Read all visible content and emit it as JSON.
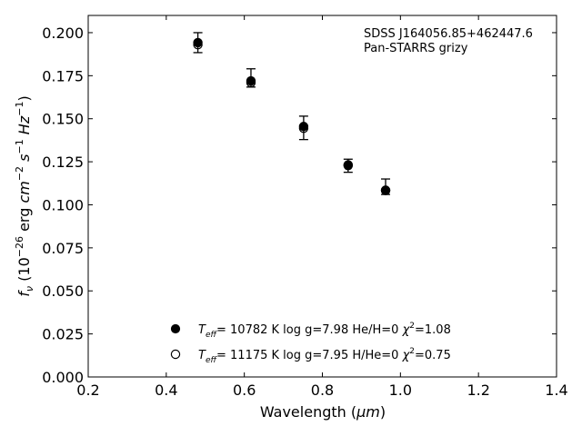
{
  "chart_data": {
    "type": "scatter",
    "xlabel_main": "Wavelength (",
    "xlabel_unit": "μm",
    "xlabel_close": ")",
    "ylabel": {
      "f": "f",
      "nu": "ν",
      "pre": " (10",
      "exp1": "−26",
      "erg": " erg ",
      "cm": "cm",
      "exp2": "−2",
      "s": "s",
      "exp3": "−1",
      "hz": "Hz",
      "exp4": "−1",
      "close": ")"
    },
    "xlim": [
      0.2,
      1.4
    ],
    "ylim": [
      0.0,
      0.21
    ],
    "xticks": [
      0.2,
      0.4,
      0.6,
      0.8,
      1.0,
      1.2,
      1.4
    ],
    "xtick_labels": [
      "0.2",
      "0.4",
      "0.6",
      "0.8",
      "1.0",
      "1.2",
      "1.4"
    ],
    "yticks": [
      0.0,
      0.025,
      0.05,
      0.075,
      0.1,
      0.125,
      0.15,
      0.175,
      0.2
    ],
    "ytick_labels": [
      "0.000",
      "0.025",
      "0.050",
      "0.075",
      "0.100",
      "0.125",
      "0.150",
      "0.175",
      "0.200"
    ],
    "grid": false,
    "annotation": [
      "SDSS J164056.85+462447.6",
      "Pan-STARRS grizy"
    ],
    "observed": {
      "x": [
        0.481,
        0.617,
        0.752,
        0.866,
        0.962
      ],
      "y": [
        0.1942,
        0.1737,
        0.1447,
        0.1227,
        0.1105
      ],
      "yerr": [
        0.0058,
        0.0053,
        0.0068,
        0.0038,
        0.0045
      ]
    },
    "series": [
      {
        "marker": "filled",
        "x": [
          0.481,
          0.617,
          0.752,
          0.866,
          0.962
        ],
        "y": [
          0.1942,
          0.172,
          0.1455,
          0.1232,
          0.1085
        ]
      },
      {
        "marker": "open",
        "x": [
          0.481,
          0.617,
          0.752,
          0.866,
          0.962
        ],
        "y": [
          0.193,
          0.171,
          0.1445,
          0.1228,
          0.1083
        ]
      }
    ],
    "legend": [
      {
        "marker": "filled",
        "T": "T",
        "eff": "eff",
        "rest1": "= 10782 K  log g=7.98  He/H=0  ",
        "chi": "χ",
        "sq": "2",
        "rest2": "=1.08"
      },
      {
        "marker": "open",
        "T": "T",
        "eff": "eff",
        "rest1": "= 11175 K  log g=7.95  H/He=0  ",
        "chi": "χ",
        "sq": "2",
        "rest2": "=0.75"
      }
    ],
    "legend_placement": "lower-center",
    "colors": {
      "axes": "#000000",
      "markers": "#000000",
      "background": "#ffffff"
    }
  }
}
